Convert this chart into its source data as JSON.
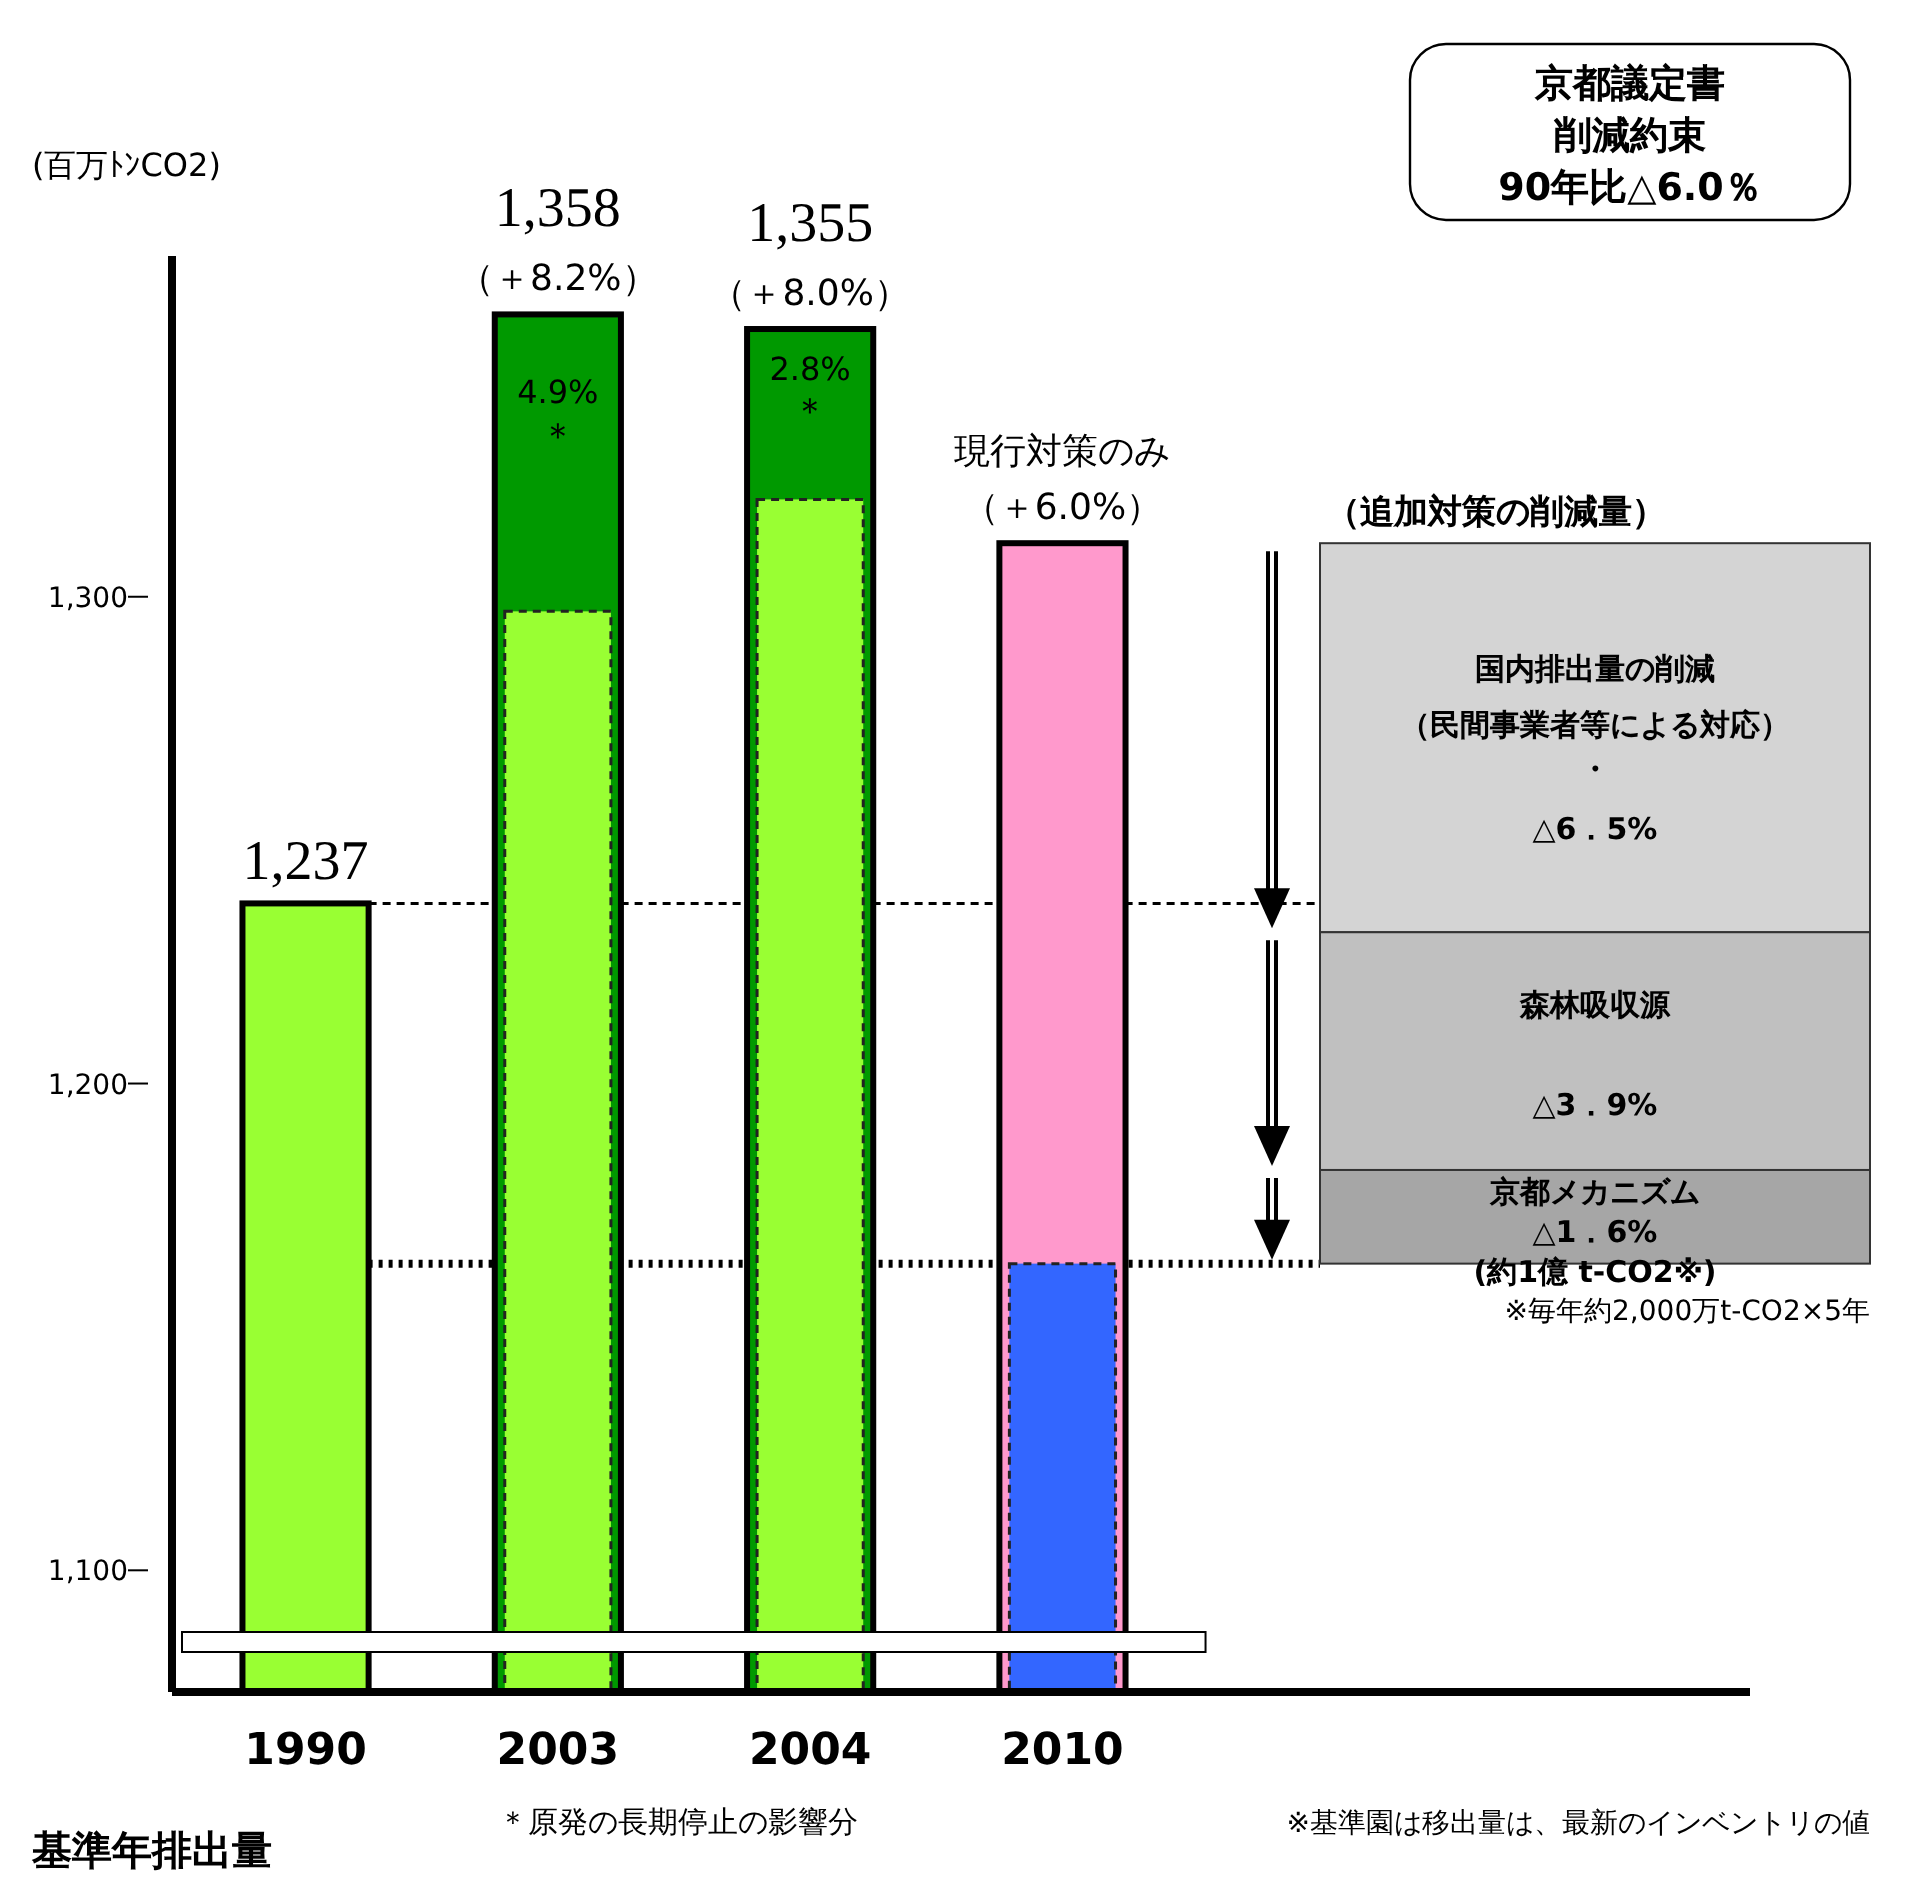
{
  "chart_data": {
    "type": "bar",
    "categories": [
      "1990",
      "2003",
      "2004",
      "2010"
    ],
    "ylabel": "(百万ﾄﾝCO2)",
    "ylim": [
      1075,
      1370
    ],
    "yticks": [
      {
        "value": 1100,
        "label": "1,100"
      },
      {
        "value": 1200,
        "label": "1,200"
      },
      {
        "value": 1300,
        "label": "1,300"
      }
    ],
    "series": [
      {
        "color": "#009900",
        "values": [
          null,
          1358,
          1355,
          null
        ],
        "value_labels": [
          null,
          "1,358",
          "1,355",
          null
        ]
      },
      {
        "color": "#ff99cc",
        "values": [
          null,
          null,
          null,
          1311
        ]
      },
      {
        "colors": [
          "#99ff33",
          "#99ff33",
          "#99ff33",
          "#3366ff"
        ],
        "values": [
          1237,
          1297,
          1320,
          1163
        ],
        "value_labels": [
          "1,237",
          null,
          null,
          null
        ]
      }
    ],
    "ref_lines": [
      {
        "axis": "y",
        "value": 1237,
        "line_style": "dashed"
      },
      {
        "axis": "y",
        "value": 1163,
        "line_style": "dotted"
      }
    ],
    "annotations": [
      {
        "text": "（＋8.2%）",
        "x": "2003",
        "y": 1358
      },
      {
        "text": "（＋8.0%）",
        "x": "2004",
        "y": 1355
      },
      {
        "text": "（＋6.0%）",
        "x": "2010",
        "y": 1311
      },
      "現行対策のみ",
      "4.9%",
      "＊",
      "2.8%",
      "＊",
      "京都議定書",
      "削減約束",
      "90年比△6.0％",
      "（追加対策の削減量）",
      "国内排出量の削減",
      "（民間事業者等による対応）",
      "・",
      "△6．5%",
      "森林吸収源",
      "△3．9%",
      "京都メカニズム",
      "△1．6%",
      "(約1億 t-CO2※)",
      "※毎年約2,000万t-CO2×5年",
      "基準年排出量",
      "＊原発の長期停止の影響分",
      "※基準園は移出量は、最新のインベントリの値"
    ]
  }
}
